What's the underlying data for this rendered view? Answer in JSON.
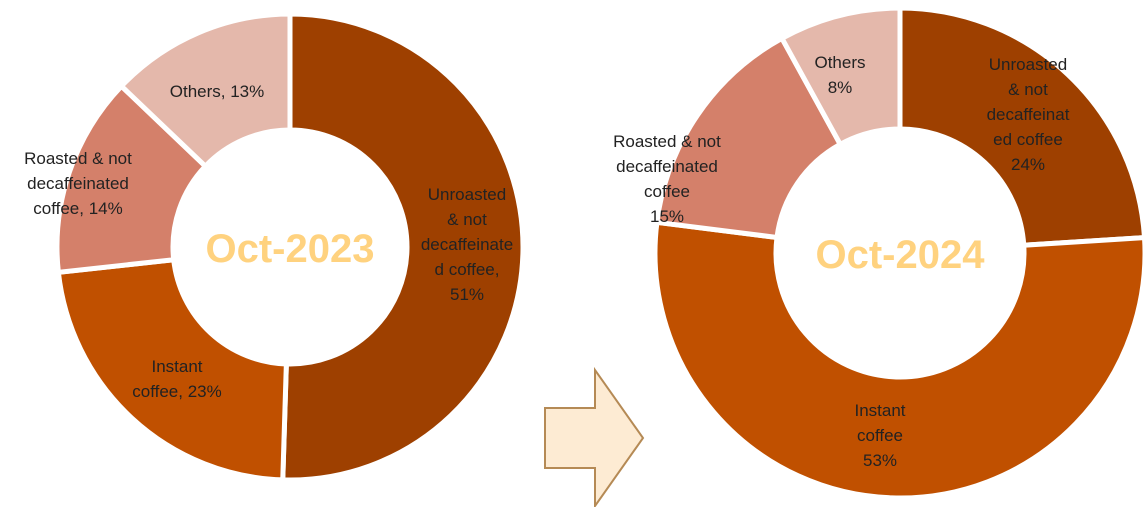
{
  "chart_data": [
    {
      "type": "pie",
      "variant": "donut",
      "center_label": "Oct-2023",
      "slices": [
        {
          "name": "Unroasted & not decaffeinated coffee",
          "value": 51,
          "color": "#9e4000",
          "label_lines": [
            "Unroasted",
            "& not",
            "decaffeinate",
            "d coffee,",
            "51%"
          ]
        },
        {
          "name": "Instant coffee",
          "value": 23,
          "color": "#c05000",
          "label_lines": [
            "Instant",
            "coffee, 23%"
          ]
        },
        {
          "name": "Roasted & not decaffeinated coffee",
          "value": 14,
          "color": "#d4806a",
          "label_lines": [
            "Roasted & not",
            "decaffeinated",
            "coffee, 14%"
          ]
        },
        {
          "name": "Others",
          "value": 13,
          "color": "#e4b8ab",
          "label_lines": [
            "Others, 13%"
          ]
        }
      ]
    },
    {
      "type": "pie",
      "variant": "donut",
      "center_label": "Oct-2024",
      "slices": [
        {
          "name": "Unroasted & not decaffeinated coffee",
          "value": 24,
          "color": "#9e4000",
          "label_lines": [
            "Unroasted",
            "& not",
            "decaffeinat",
            "ed coffee",
            "24%"
          ]
        },
        {
          "name": "Instant coffee",
          "value": 53,
          "color": "#c05000",
          "label_lines": [
            "Instant",
            "coffee",
            "53%"
          ]
        },
        {
          "name": "Roasted & not decaffeinated coffee",
          "value": 15,
          "color": "#d4806a",
          "label_lines": [
            "Roasted & not",
            "decaffeinated",
            "coffee",
            "15%"
          ]
        },
        {
          "name": "Others",
          "value": 8,
          "color": "#e4b8ab",
          "label_lines": [
            "Others",
            "8%"
          ]
        }
      ]
    }
  ],
  "arrow": {
    "icon": "right-arrow-icon",
    "fill": "#fdebd3",
    "stroke": "#b58a55"
  }
}
